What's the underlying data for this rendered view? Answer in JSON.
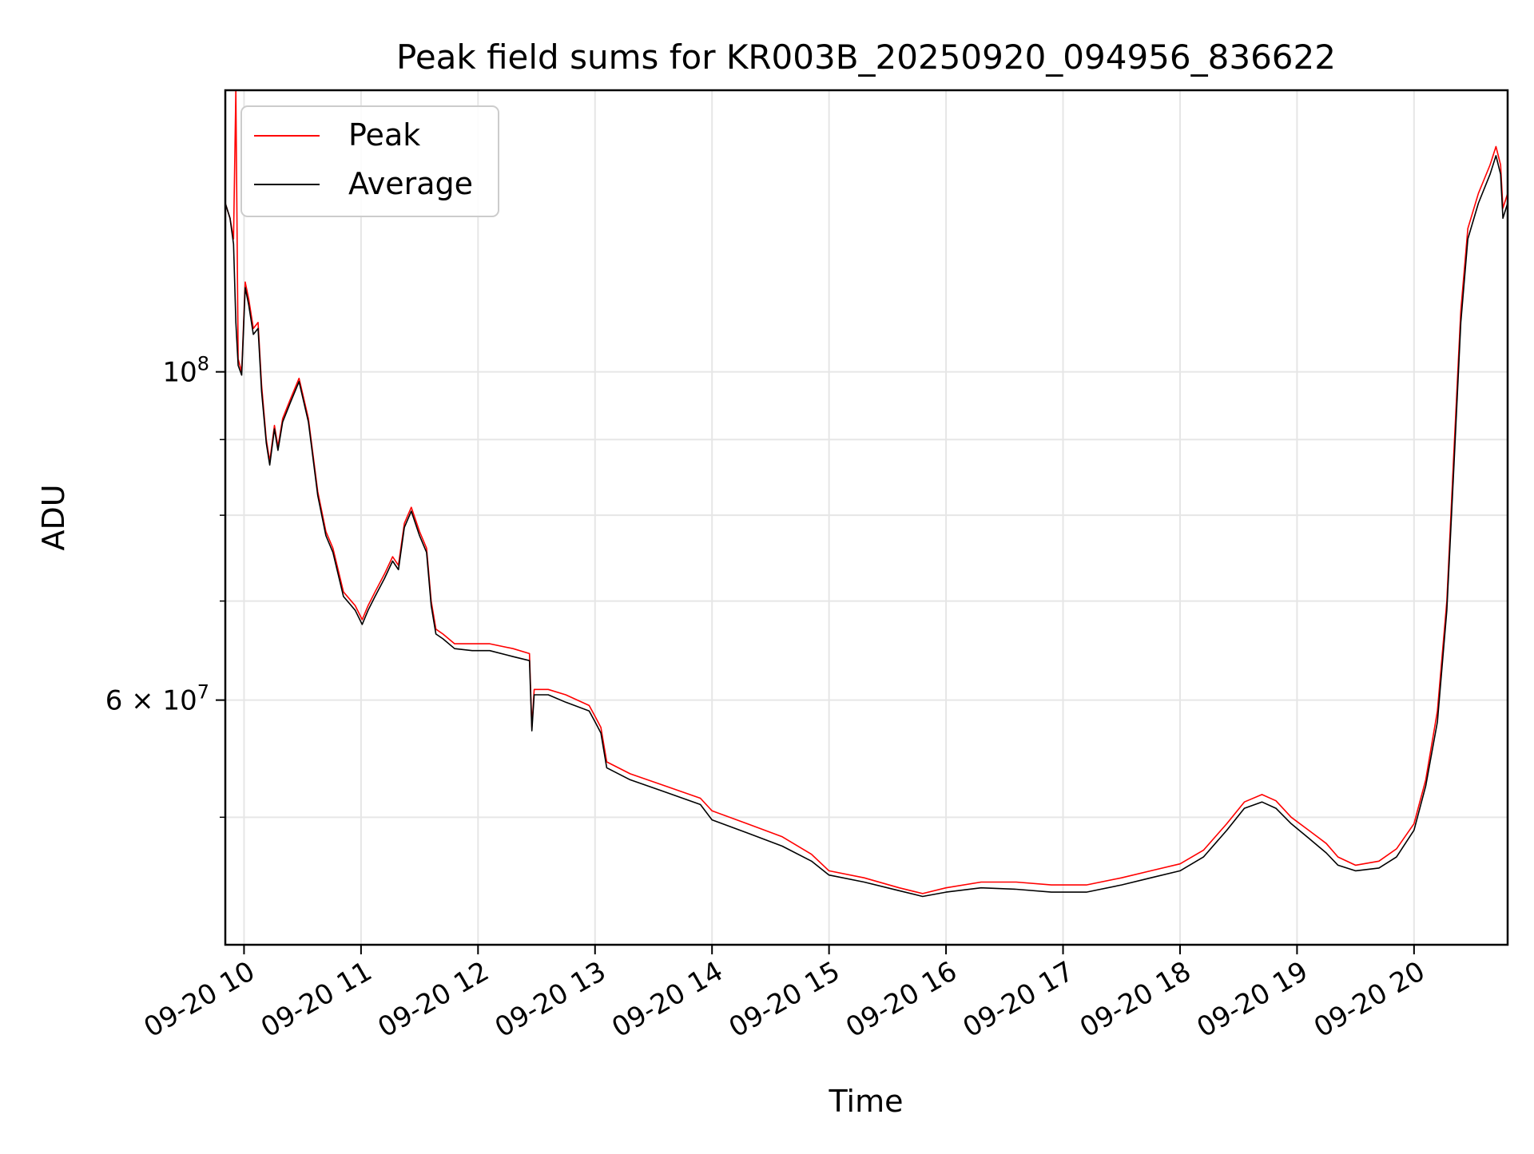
{
  "chart_data": {
    "type": "line",
    "title": "Peak field sums for KR003B_20250920_094956_836622",
    "xlabel": "Time",
    "ylabel": "ADU",
    "y_scale": "log",
    "grid": true,
    "legend_placement": "top-left",
    "x_unit": "hours since 09-20 00:00",
    "xlim": [
      9.84,
      20.8
    ],
    "ylim": [
      41000000.0,
      155000000.0
    ],
    "x_ticks": [
      {
        "value": 10,
        "label": "09-20 10"
      },
      {
        "value": 11,
        "label": "09-20 11"
      },
      {
        "value": 12,
        "label": "09-20 12"
      },
      {
        "value": 13,
        "label": "09-20 13"
      },
      {
        "value": 14,
        "label": "09-20 14"
      },
      {
        "value": 15,
        "label": "09-20 15"
      },
      {
        "value": 16,
        "label": "09-20 16"
      },
      {
        "value": 17,
        "label": "09-20 17"
      },
      {
        "value": 18,
        "label": "09-20 18"
      },
      {
        "value": 19,
        "label": "09-20 19"
      },
      {
        "value": 20,
        "label": "09-20 20"
      }
    ],
    "y_major_ticks": [
      {
        "value": 100000000,
        "base": "10",
        "exp": "8"
      },
      {
        "value": 60000000,
        "mantissa": "6 × ",
        "base": "10",
        "exp": "7"
      }
    ],
    "y_minor_gridlines": [
      50000000,
      70000000,
      80000000,
      90000000
    ],
    "series": [
      {
        "name": "Peak",
        "color": "#ff0000",
        "points": [
          [
            9.84,
            130000000.0
          ],
          [
            9.88,
            127000000.0
          ],
          [
            9.91,
            123000000.0
          ],
          [
            9.93,
            155000000.0
          ],
          [
            9.95,
            102000000.0
          ],
          [
            9.98,
            100000000.0
          ],
          [
            10.01,
            115000000.0
          ],
          [
            10.04,
            112000000.0
          ],
          [
            10.08,
            107000000.0
          ],
          [
            10.12,
            108000000.0
          ],
          [
            10.15,
            98000000.0
          ],
          [
            10.19,
            90000000.0
          ],
          [
            10.22,
            87000000.0
          ],
          [
            10.26,
            92000000.0
          ],
          [
            10.29,
            89000000.0
          ],
          [
            10.33,
            93000000.0
          ],
          [
            10.4,
            96000000.0
          ],
          [
            10.47,
            99000000.0
          ],
          [
            10.55,
            93000000.0
          ],
          [
            10.63,
            83000000.0
          ],
          [
            10.7,
            78000000.0
          ],
          [
            10.76,
            76000000.0
          ],
          [
            10.85,
            71000000.0
          ],
          [
            10.95,
            69500000.0
          ],
          [
            11.01,
            68000000.0
          ],
          [
            11.06,
            69500000.0
          ],
          [
            11.12,
            71000000.0
          ],
          [
            11.2,
            73000000.0
          ],
          [
            11.27,
            75000000.0
          ],
          [
            11.32,
            74000000.0
          ],
          [
            11.37,
            79000000.0
          ],
          [
            11.43,
            81000000.0
          ],
          [
            11.5,
            78000000.0
          ],
          [
            11.56,
            76000000.0
          ],
          [
            11.6,
            70000000.0
          ],
          [
            11.64,
            67000000.0
          ],
          [
            11.7,
            66500000.0
          ],
          [
            11.8,
            65500000.0
          ],
          [
            11.95,
            65500000.0
          ],
          [
            12.1,
            65500000.0
          ],
          [
            12.3,
            65000000.0
          ],
          [
            12.44,
            64500000.0
          ],
          [
            12.46,
            57500000.0
          ],
          [
            12.48,
            61000000.0
          ],
          [
            12.6,
            61000000.0
          ],
          [
            12.75,
            60500000.0
          ],
          [
            12.95,
            59500000.0
          ],
          [
            13.0,
            58500000.0
          ],
          [
            13.05,
            57500000.0
          ],
          [
            13.1,
            54500000.0
          ],
          [
            13.3,
            53500000.0
          ],
          [
            13.6,
            52500000.0
          ],
          [
            13.9,
            51500000.0
          ],
          [
            14.0,
            50500000.0
          ],
          [
            14.3,
            49500000.0
          ],
          [
            14.6,
            48500000.0
          ],
          [
            14.85,
            47200000.0
          ],
          [
            15.0,
            46000000.0
          ],
          [
            15.3,
            45500000.0
          ],
          [
            15.6,
            44800000.0
          ],
          [
            15.8,
            44400000.0
          ],
          [
            16.0,
            44800000.0
          ],
          [
            16.3,
            45200000.0
          ],
          [
            16.6,
            45200000.0
          ],
          [
            16.9,
            45000000.0
          ],
          [
            17.2,
            45000000.0
          ],
          [
            17.5,
            45500000.0
          ],
          [
            17.75,
            46000000.0
          ],
          [
            18.0,
            46500000.0
          ],
          [
            18.2,
            47500000.0
          ],
          [
            18.4,
            49500000.0
          ],
          [
            18.55,
            51200000.0
          ],
          [
            18.7,
            51800000.0
          ],
          [
            18.82,
            51300000.0
          ],
          [
            18.95,
            50000000.0
          ],
          [
            19.1,
            49000000.0
          ],
          [
            19.25,
            48000000.0
          ],
          [
            19.35,
            47000000.0
          ],
          [
            19.5,
            46400000.0
          ],
          [
            19.7,
            46700000.0
          ],
          [
            19.85,
            47600000.0
          ],
          [
            20.0,
            49500000.0
          ],
          [
            20.1,
            53000000.0
          ],
          [
            20.2,
            59000000.0
          ],
          [
            20.28,
            70000000.0
          ],
          [
            20.34,
            88000000.0
          ],
          [
            20.4,
            110000000.0
          ],
          [
            20.46,
            125000000.0
          ],
          [
            20.55,
            132000000.0
          ],
          [
            20.65,
            138000000.0
          ],
          [
            20.7,
            142000000.0
          ],
          [
            20.74,
            138000000.0
          ],
          [
            20.76,
            129000000.0
          ],
          [
            20.8,
            132000000.0
          ]
        ]
      },
      {
        "name": "Average",
        "color": "#000000",
        "points": [
          [
            9.84,
            130000000.0
          ],
          [
            9.88,
            127000000.0
          ],
          [
            9.91,
            122000000.0
          ],
          [
            9.93,
            108000000.0
          ],
          [
            9.95,
            101000000.0
          ],
          [
            9.98,
            99500000.0
          ],
          [
            10.01,
            114000000.0
          ],
          [
            10.04,
            111000000.0
          ],
          [
            10.08,
            106000000.0
          ],
          [
            10.12,
            107000000.0
          ],
          [
            10.15,
            97000000.0
          ],
          [
            10.19,
            89500000.0
          ],
          [
            10.22,
            86500000.0
          ],
          [
            10.26,
            91500000.0
          ],
          [
            10.29,
            88500000.0
          ],
          [
            10.33,
            92500000.0
          ],
          [
            10.4,
            95500000.0
          ],
          [
            10.47,
            98500000.0
          ],
          [
            10.55,
            92500000.0
          ],
          [
            10.63,
            82500000.0
          ],
          [
            10.7,
            77500000.0
          ],
          [
            10.76,
            75500000.0
          ],
          [
            10.85,
            70500000.0
          ],
          [
            10.95,
            69000000.0
          ],
          [
            11.01,
            67500000.0
          ],
          [
            11.06,
            69000000.0
          ],
          [
            11.12,
            70500000.0
          ],
          [
            11.2,
            72500000.0
          ],
          [
            11.27,
            74500000.0
          ],
          [
            11.32,
            73500000.0
          ],
          [
            11.37,
            78500000.0
          ],
          [
            11.43,
            80500000.0
          ],
          [
            11.5,
            77500000.0
          ],
          [
            11.56,
            75500000.0
          ],
          [
            11.6,
            69500000.0
          ],
          [
            11.64,
            66500000.0
          ],
          [
            11.7,
            66000000.0
          ],
          [
            11.8,
            65000000.0
          ],
          [
            11.95,
            64800000.0
          ],
          [
            12.1,
            64800000.0
          ],
          [
            12.3,
            64200000.0
          ],
          [
            12.44,
            63800000.0
          ],
          [
            12.46,
            57200000.0
          ],
          [
            12.48,
            60500000.0
          ],
          [
            12.6,
            60500000.0
          ],
          [
            12.75,
            59800000.0
          ],
          [
            12.95,
            59000000.0
          ],
          [
            13.0,
            58000000.0
          ],
          [
            13.05,
            57000000.0
          ],
          [
            13.1,
            54000000.0
          ],
          [
            13.3,
            53000000.0
          ],
          [
            13.6,
            52000000.0
          ],
          [
            13.9,
            51000000.0
          ],
          [
            14.0,
            49800000.0
          ],
          [
            14.3,
            48800000.0
          ],
          [
            14.6,
            47800000.0
          ],
          [
            14.85,
            46700000.0
          ],
          [
            15.0,
            45700000.0
          ],
          [
            15.3,
            45200000.0
          ],
          [
            15.6,
            44600000.0
          ],
          [
            15.8,
            44200000.0
          ],
          [
            16.0,
            44500000.0
          ],
          [
            16.3,
            44800000.0
          ],
          [
            16.6,
            44700000.0
          ],
          [
            16.9,
            44500000.0
          ],
          [
            17.2,
            44500000.0
          ],
          [
            17.5,
            45000000.0
          ],
          [
            17.75,
            45500000.0
          ],
          [
            18.0,
            46000000.0
          ],
          [
            18.2,
            47000000.0
          ],
          [
            18.4,
            49000000.0
          ],
          [
            18.55,
            50700000.0
          ],
          [
            18.7,
            51200000.0
          ],
          [
            18.82,
            50700000.0
          ],
          [
            18.95,
            49500000.0
          ],
          [
            19.1,
            48400000.0
          ],
          [
            19.25,
            47300000.0
          ],
          [
            19.35,
            46400000.0
          ],
          [
            19.5,
            46000000.0
          ],
          [
            19.7,
            46200000.0
          ],
          [
            19.85,
            47000000.0
          ],
          [
            20.0,
            49000000.0
          ],
          [
            20.1,
            52500000.0
          ],
          [
            20.2,
            58000000.0
          ],
          [
            20.28,
            69000000.0
          ],
          [
            20.34,
            86000000.0
          ],
          [
            20.4,
            108000000.0
          ],
          [
            20.46,
            123000000.0
          ],
          [
            20.55,
            130000000.0
          ],
          [
            20.65,
            136000000.0
          ],
          [
            20.7,
            140000000.0
          ],
          [
            20.74,
            136000000.0
          ],
          [
            20.76,
            127000000.0
          ],
          [
            20.8,
            130000000.0
          ]
        ]
      }
    ]
  }
}
